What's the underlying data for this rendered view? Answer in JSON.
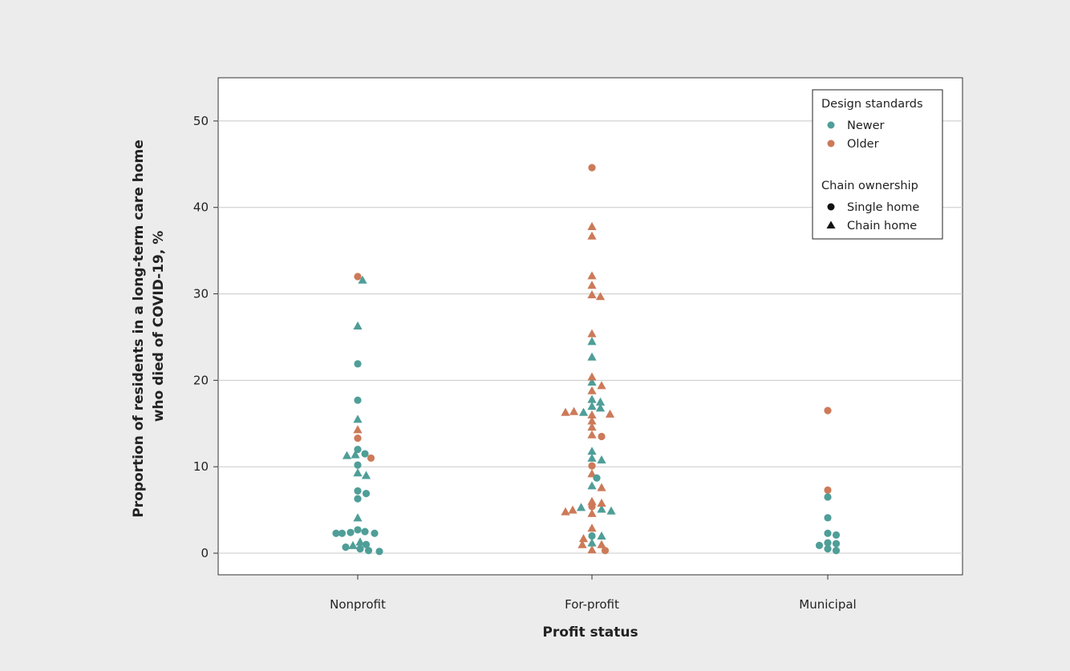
{
  "chart_data": {
    "type": "scatter",
    "title": "",
    "xlabel": "Profit status",
    "ylabel_lines": [
      "Proportion of residents in a long-term care home",
      "who died of COVID-19, %"
    ],
    "categories": [
      "Nonprofit",
      "For-profit",
      "Municipal"
    ],
    "ylim": [
      -2.5,
      55
    ],
    "yticks": [
      0,
      10,
      20,
      30,
      40,
      50
    ],
    "grid": true,
    "legend_placement": "top-right",
    "colors": {
      "newer": "#4f9e98",
      "older": "#cc7a59",
      "marker_key": "#111111"
    },
    "legend": {
      "design_title": "Design standards",
      "design_entries": [
        {
          "key": "newer",
          "label": "Newer"
        },
        {
          "key": "older",
          "label": "Older"
        }
      ],
      "chain_title": "Chain ownership",
      "chain_entries": [
        {
          "shape": "circle",
          "label": "Single home"
        },
        {
          "shape": "triangle",
          "label": "Chain home"
        }
      ]
    },
    "points": [
      {
        "cat": 0,
        "dx": -0.05,
        "y": 0.7,
        "design": "newer",
        "shape": "circle"
      },
      {
        "cat": 0,
        "dx": -0.02,
        "y": 0.9,
        "design": "newer",
        "shape": "triangle"
      },
      {
        "cat": 0,
        "dx": 0.01,
        "y": 1.3,
        "design": "newer",
        "shape": "triangle"
      },
      {
        "cat": 0,
        "dx": 0.01,
        "y": 0.5,
        "design": "newer",
        "shape": "circle"
      },
      {
        "cat": 0,
        "dx": 0.035,
        "y": 1.0,
        "design": "newer",
        "shape": "circle"
      },
      {
        "cat": 0,
        "dx": 0.045,
        "y": 0.3,
        "design": "newer",
        "shape": "circle"
      },
      {
        "cat": 0,
        "dx": 0.09,
        "y": 0.2,
        "design": "newer",
        "shape": "circle"
      },
      {
        "cat": 0,
        "dx": -0.09,
        "y": 2.3,
        "design": "newer",
        "shape": "circle"
      },
      {
        "cat": 0,
        "dx": -0.065,
        "y": 2.3,
        "design": "newer",
        "shape": "circle"
      },
      {
        "cat": 0,
        "dx": -0.03,
        "y": 2.4,
        "design": "newer",
        "shape": "circle"
      },
      {
        "cat": 0,
        "dx": 0.0,
        "y": 2.7,
        "design": "newer",
        "shape": "circle"
      },
      {
        "cat": 0,
        "dx": 0.03,
        "y": 2.5,
        "design": "newer",
        "shape": "circle"
      },
      {
        "cat": 0,
        "dx": 0.07,
        "y": 2.3,
        "design": "newer",
        "shape": "circle"
      },
      {
        "cat": 0,
        "dx": 0.0,
        "y": 4.1,
        "design": "newer",
        "shape": "triangle"
      },
      {
        "cat": 0,
        "dx": 0.0,
        "y": 6.3,
        "design": "newer",
        "shape": "circle"
      },
      {
        "cat": 0,
        "dx": 0.0,
        "y": 7.2,
        "design": "newer",
        "shape": "circle"
      },
      {
        "cat": 0,
        "dx": 0.035,
        "y": 6.9,
        "design": "newer",
        "shape": "circle"
      },
      {
        "cat": 0,
        "dx": 0.0,
        "y": 9.3,
        "design": "newer",
        "shape": "triangle"
      },
      {
        "cat": 0,
        "dx": 0.035,
        "y": 9.0,
        "design": "newer",
        "shape": "triangle"
      },
      {
        "cat": 0,
        "dx": 0.0,
        "y": 10.2,
        "design": "newer",
        "shape": "circle"
      },
      {
        "cat": 0,
        "dx": -0.045,
        "y": 11.3,
        "design": "newer",
        "shape": "triangle"
      },
      {
        "cat": 0,
        "dx": -0.01,
        "y": 11.4,
        "design": "newer",
        "shape": "triangle"
      },
      {
        "cat": 0,
        "dx": 0.0,
        "y": 12.0,
        "design": "newer",
        "shape": "circle"
      },
      {
        "cat": 0,
        "dx": 0.03,
        "y": 11.5,
        "design": "newer",
        "shape": "circle"
      },
      {
        "cat": 0,
        "dx": 0.055,
        "y": 11.0,
        "design": "older",
        "shape": "circle"
      },
      {
        "cat": 0,
        "dx": 0.0,
        "y": 13.3,
        "design": "older",
        "shape": "circle"
      },
      {
        "cat": 0,
        "dx": 0.0,
        "y": 14.3,
        "design": "older",
        "shape": "triangle"
      },
      {
        "cat": 0,
        "dx": 0.0,
        "y": 15.5,
        "design": "newer",
        "shape": "triangle"
      },
      {
        "cat": 0,
        "dx": 0.0,
        "y": 17.7,
        "design": "newer",
        "shape": "circle"
      },
      {
        "cat": 0,
        "dx": 0.0,
        "y": 21.9,
        "design": "newer",
        "shape": "circle"
      },
      {
        "cat": 0,
        "dx": 0.0,
        "y": 26.3,
        "design": "newer",
        "shape": "triangle"
      },
      {
        "cat": 0,
        "dx": 0.0,
        "y": 32.0,
        "design": "older",
        "shape": "circle"
      },
      {
        "cat": 0,
        "dx": 0.02,
        "y": 31.6,
        "design": "newer",
        "shape": "triangle"
      },
      {
        "cat": 1,
        "dx": 0.0,
        "y": 0.4,
        "design": "older",
        "shape": "triangle"
      },
      {
        "cat": 1,
        "dx": 0.055,
        "y": 0.3,
        "design": "older",
        "shape": "circle"
      },
      {
        "cat": 1,
        "dx": -0.04,
        "y": 1.0,
        "design": "older",
        "shape": "triangle"
      },
      {
        "cat": 1,
        "dx": 0.0,
        "y": 1.2,
        "design": "newer",
        "shape": "triangle"
      },
      {
        "cat": 1,
        "dx": 0.04,
        "y": 1.0,
        "design": "older",
        "shape": "triangle"
      },
      {
        "cat": 1,
        "dx": -0.035,
        "y": 1.7,
        "design": "older",
        "shape": "triangle"
      },
      {
        "cat": 1,
        "dx": 0.0,
        "y": 2.0,
        "design": "newer",
        "shape": "circle"
      },
      {
        "cat": 1,
        "dx": 0.04,
        "y": 2.0,
        "design": "newer",
        "shape": "triangle"
      },
      {
        "cat": 1,
        "dx": 0.0,
        "y": 2.9,
        "design": "older",
        "shape": "triangle"
      },
      {
        "cat": 1,
        "dx": -0.11,
        "y": 4.8,
        "design": "older",
        "shape": "triangle"
      },
      {
        "cat": 1,
        "dx": -0.08,
        "y": 5.0,
        "design": "older",
        "shape": "triangle"
      },
      {
        "cat": 1,
        "dx": -0.045,
        "y": 5.3,
        "design": "newer",
        "shape": "triangle"
      },
      {
        "cat": 1,
        "dx": 0.0,
        "y": 4.6,
        "design": "older",
        "shape": "triangle"
      },
      {
        "cat": 1,
        "dx": 0.0,
        "y": 5.4,
        "design": "older",
        "shape": "circle"
      },
      {
        "cat": 1,
        "dx": 0.04,
        "y": 5.1,
        "design": "newer",
        "shape": "triangle"
      },
      {
        "cat": 1,
        "dx": 0.08,
        "y": 4.9,
        "design": "newer",
        "shape": "triangle"
      },
      {
        "cat": 1,
        "dx": 0.0,
        "y": 6.0,
        "design": "older",
        "shape": "triangle"
      },
      {
        "cat": 1,
        "dx": 0.04,
        "y": 5.8,
        "design": "older",
        "shape": "triangle"
      },
      {
        "cat": 1,
        "dx": 0.0,
        "y": 7.8,
        "design": "newer",
        "shape": "triangle"
      },
      {
        "cat": 1,
        "dx": 0.04,
        "y": 7.6,
        "design": "older",
        "shape": "triangle"
      },
      {
        "cat": 1,
        "dx": 0.0,
        "y": 9.2,
        "design": "older",
        "shape": "triangle"
      },
      {
        "cat": 1,
        "dx": 0.02,
        "y": 8.7,
        "design": "newer",
        "shape": "circle"
      },
      {
        "cat": 1,
        "dx": 0.0,
        "y": 10.1,
        "design": "older",
        "shape": "circle"
      },
      {
        "cat": 1,
        "dx": 0.0,
        "y": 11.0,
        "design": "newer",
        "shape": "triangle"
      },
      {
        "cat": 1,
        "dx": 0.04,
        "y": 10.8,
        "design": "newer",
        "shape": "triangle"
      },
      {
        "cat": 1,
        "dx": 0.0,
        "y": 11.8,
        "design": "newer",
        "shape": "triangle"
      },
      {
        "cat": 1,
        "dx": 0.0,
        "y": 13.7,
        "design": "older",
        "shape": "triangle"
      },
      {
        "cat": 1,
        "dx": 0.04,
        "y": 13.5,
        "design": "older",
        "shape": "circle"
      },
      {
        "cat": 1,
        "dx": 0.0,
        "y": 14.6,
        "design": "older",
        "shape": "triangle"
      },
      {
        "cat": 1,
        "dx": 0.0,
        "y": 15.3,
        "design": "older",
        "shape": "triangle"
      },
      {
        "cat": 1,
        "dx": -0.11,
        "y": 16.3,
        "design": "older",
        "shape": "triangle"
      },
      {
        "cat": 1,
        "dx": -0.075,
        "y": 16.4,
        "design": "older",
        "shape": "triangle"
      },
      {
        "cat": 1,
        "dx": -0.035,
        "y": 16.3,
        "design": "newer",
        "shape": "triangle"
      },
      {
        "cat": 1,
        "dx": 0.0,
        "y": 16.0,
        "design": "older",
        "shape": "triangle"
      },
      {
        "cat": 1,
        "dx": 0.035,
        "y": 16.8,
        "design": "newer",
        "shape": "triangle"
      },
      {
        "cat": 1,
        "dx": 0.075,
        "y": 16.1,
        "design": "older",
        "shape": "triangle"
      },
      {
        "cat": 1,
        "dx": 0.0,
        "y": 17.0,
        "design": "newer",
        "shape": "triangle"
      },
      {
        "cat": 1,
        "dx": 0.035,
        "y": 17.5,
        "design": "newer",
        "shape": "triangle"
      },
      {
        "cat": 1,
        "dx": 0.0,
        "y": 17.8,
        "design": "newer",
        "shape": "triangle"
      },
      {
        "cat": 1,
        "dx": 0.0,
        "y": 18.8,
        "design": "older",
        "shape": "triangle"
      },
      {
        "cat": 1,
        "dx": 0.0,
        "y": 19.8,
        "design": "newer",
        "shape": "triangle"
      },
      {
        "cat": 1,
        "dx": 0.04,
        "y": 19.4,
        "design": "older",
        "shape": "triangle"
      },
      {
        "cat": 1,
        "dx": 0.0,
        "y": 20.4,
        "design": "older",
        "shape": "triangle"
      },
      {
        "cat": 1,
        "dx": 0.0,
        "y": 22.7,
        "design": "newer",
        "shape": "triangle"
      },
      {
        "cat": 1,
        "dx": 0.0,
        "y": 24.5,
        "design": "newer",
        "shape": "triangle"
      },
      {
        "cat": 1,
        "dx": 0.0,
        "y": 25.4,
        "design": "older",
        "shape": "triangle"
      },
      {
        "cat": 1,
        "dx": 0.0,
        "y": 29.9,
        "design": "older",
        "shape": "triangle"
      },
      {
        "cat": 1,
        "dx": 0.035,
        "y": 29.7,
        "design": "older",
        "shape": "triangle"
      },
      {
        "cat": 1,
        "dx": 0.0,
        "y": 31.0,
        "design": "older",
        "shape": "triangle"
      },
      {
        "cat": 1,
        "dx": 0.0,
        "y": 32.1,
        "design": "older",
        "shape": "triangle"
      },
      {
        "cat": 1,
        "dx": 0.0,
        "y": 36.7,
        "design": "older",
        "shape": "triangle"
      },
      {
        "cat": 1,
        "dx": 0.0,
        "y": 37.8,
        "design": "older",
        "shape": "triangle"
      },
      {
        "cat": 1,
        "dx": 0.0,
        "y": 44.6,
        "design": "older",
        "shape": "circle"
      },
      {
        "cat": 2,
        "dx": -0.035,
        "y": 0.9,
        "design": "newer",
        "shape": "circle"
      },
      {
        "cat": 2,
        "dx": 0.0,
        "y": 0.5,
        "design": "newer",
        "shape": "circle"
      },
      {
        "cat": 2,
        "dx": 0.0,
        "y": 1.2,
        "design": "newer",
        "shape": "circle"
      },
      {
        "cat": 2,
        "dx": 0.035,
        "y": 1.1,
        "design": "newer",
        "shape": "circle"
      },
      {
        "cat": 2,
        "dx": 0.035,
        "y": 0.3,
        "design": "newer",
        "shape": "circle"
      },
      {
        "cat": 2,
        "dx": 0.0,
        "y": 2.3,
        "design": "newer",
        "shape": "circle"
      },
      {
        "cat": 2,
        "dx": 0.035,
        "y": 2.1,
        "design": "newer",
        "shape": "circle"
      },
      {
        "cat": 2,
        "dx": 0.0,
        "y": 4.1,
        "design": "newer",
        "shape": "circle"
      },
      {
        "cat": 2,
        "dx": 0.0,
        "y": 6.5,
        "design": "newer",
        "shape": "circle"
      },
      {
        "cat": 2,
        "dx": 0.0,
        "y": 7.3,
        "design": "older",
        "shape": "circle"
      },
      {
        "cat": 2,
        "dx": 0.0,
        "y": 16.5,
        "design": "older",
        "shape": "circle"
      }
    ]
  }
}
